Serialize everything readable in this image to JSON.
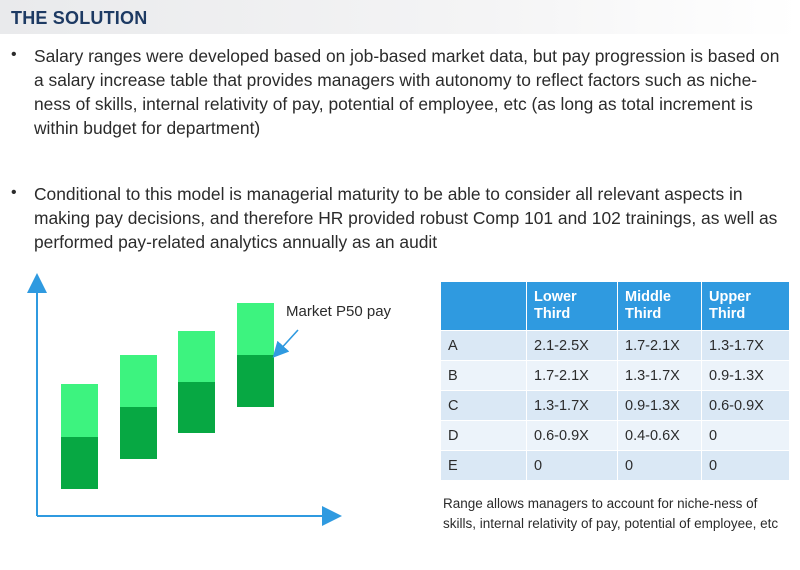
{
  "header": {
    "title": "THE SOLUTION"
  },
  "bullets": [
    {
      "marker": "•",
      "text": "Salary ranges were developed based on job-based market data, but pay progression is based on a salary increase table that provides managers with autonomy to reflect factors such as niche-ness of skills, internal relativity of pay, potential of employee, etc (as long as total increment is within budget for department)"
    },
    {
      "marker": "•",
      "text": "Conditional to this model is managerial maturity to be able to consider all relevant aspects in making pay decisions, and therefore HR provided robust Comp 101 and 102 trainings, as well as performed pay-related analytics annually as an audit"
    }
  ],
  "diagram": {
    "market_label": "Market P50 pay",
    "colors": {
      "upper": "#3df37f",
      "lower": "#07a843",
      "axis": "#2f9ae0"
    }
  },
  "table": {
    "headers": [
      "",
      "Lower\nThird",
      "Middle\nThird",
      "Upper\nThird"
    ],
    "rows": [
      [
        "A",
        "2.1-2.5X",
        "1.7-2.1X",
        "1.3-1.7X"
      ],
      [
        "B",
        "1.7-2.1X",
        "1.3-1.7X",
        "0.9-1.3X"
      ],
      [
        "C",
        "1.3-1.7X",
        "0.9-1.3X",
        "0.6-0.9X"
      ],
      [
        "D",
        "0.6-0.9X",
        "0.4-0.6X",
        "0"
      ],
      [
        "E",
        "0",
        "0",
        "0"
      ]
    ],
    "colors": {
      "header": "#2f9ae0",
      "row_odd": "#dae8f5",
      "row_even": "#ecf3fa"
    }
  },
  "note": "Range allows managers to account for niche-ness of skills, internal relativity of pay, potential of employee, etc"
}
